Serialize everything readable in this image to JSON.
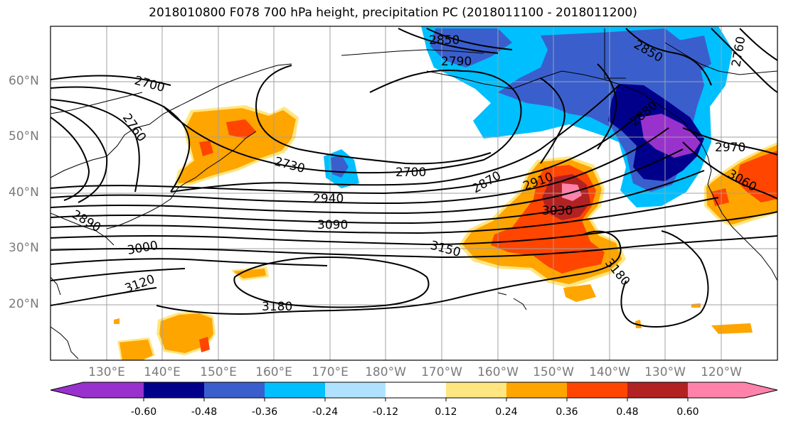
{
  "title": "2018010800 F078 700 hPa height, precipitation PC (2018011100 - 2018011200)",
  "lat_labels": [
    "60°N",
    "50°N",
    "40°N",
    "30°N",
    "20°N"
  ],
  "lon_labels": [
    "130°E",
    "140°E",
    "150°E",
    "160°E",
    "170°E",
    "180°W",
    "170°W",
    "160°W",
    "150°W",
    "140°W",
    "130°W",
    "120°W"
  ],
  "contour_labels": [
    "2850",
    "2790",
    "2850",
    "2760",
    "2700",
    "2760",
    "2730",
    "2700",
    "2870",
    "2910",
    "2940",
    "3030",
    "3090",
    "3000",
    "2890",
    "3150",
    "3120",
    "3180",
    "3180",
    "2970",
    "3060",
    "2880"
  ],
  "colorbar": {
    "colors": [
      "#9932cc",
      "#00008b",
      "#3a5fcd",
      "#00bfff",
      "#b0e2ff",
      "#ffffff",
      "#ffe680",
      "#ffa500",
      "#ff4500",
      "#b22222",
      "#ff82ab"
    ],
    "tick_labels": [
      "-0.60",
      "-0.48",
      "-0.36",
      "-0.24",
      "-0.12",
      "0.12",
      "0.24",
      "0.36",
      "0.48",
      "0.60"
    ]
  }
}
